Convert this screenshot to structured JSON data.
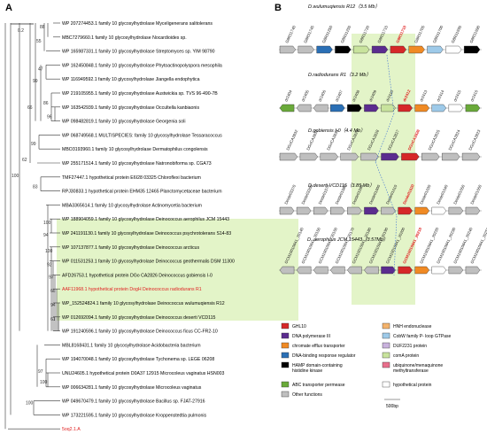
{
  "panel_a": {
    "label": "A",
    "scale_label": "0.2",
    "leaves": [
      {
        "text": "WP 207274453.1 family 10 glycosylhydrolase Myceligenerans salitolerans",
        "red": false
      },
      {
        "text": "MBC7279660.1 family 10 glycosylhydrolase Nocardioides sp.",
        "red": false
      },
      {
        "text": "WP 165987331.1 family 10 glycosylhydrolase Streptomyces sp. YIM 98790",
        "red": false
      },
      {
        "text": "WP 162450848.1 family 10 glycosylhydrolase Phytoactinopolyspora mesophila",
        "red": false
      },
      {
        "text": "WP 116949592.1 family 10 glycosylhydrolase Jiangella endophytica",
        "red": false
      },
      {
        "text": "WP 219105955.1 family 10 glycosylhydrolase Austwickia sp. TVS 96-490-7B",
        "red": false
      },
      {
        "text": "WP 163542939.1 family 10 glycosylhydrolase Occultella kanbiaonis",
        "red": false
      },
      {
        "text": "WP 098482819.1 family 10 glycosylhydrolase Georgenia soli",
        "red": false
      },
      {
        "text": "WP 068749568.1 MULTISPECIES: family 10 glycosylhydrolase Tessaracoccus",
        "red": false
      },
      {
        "text": "MBO3193960.1 family 10 glycosylhydrolase Dermatophilus congolensis",
        "red": false
      },
      {
        "text": "WP 255171514.1 family 10 glycosylhydrolase Natronobiforma sp. CGA73",
        "red": false
      },
      {
        "text": "TMF27447.1 hypothetical protein E6I28 03325 Chloroflexi bacterium",
        "red": false
      },
      {
        "text": "RPJ30833.1 hypothetical protein EHM35 12465 Planctomycetaceae bacterium",
        "red": false
      },
      {
        "text": "MBA3365614.1 family 10 glycosylhydrolase Actinomycetia bacterium",
        "red": false
      },
      {
        "text": "WP 188904059.1 family 10 glycosylhydrolase Deinococcus aerophilus JCM 15443",
        "red": false
      },
      {
        "text": "WP 241191130.1 family 10 glycosylhydrolase Deinococcus psychrotolerans S14-83",
        "red": false
      },
      {
        "text": "WP 107137877.1 family 10 glycosylhydrolase Deinococcus arcticus",
        "red": false
      },
      {
        "text": "WP 011531253.1 family 10 glycosylhydrolase Deinococcus geothermalis DSM 11300",
        "red": false
      },
      {
        "text": "AFD26753.1 hypothetical protein DGo CA2826 Deinococcus gobiensis I-0",
        "red": false
      },
      {
        "text": "AAF11968.1 hypothetical protein DogH Deinococcus radiodurans R1",
        "red": true
      },
      {
        "text": "WP_152524824.1 family 10 glycosylhydrolase Deinococcus wulumuqiensis R12",
        "red": false
      },
      {
        "text": "WP 012692094.1 family 10 glycosylhydrolase Deinococcus deserti VCD115",
        "red": false
      },
      {
        "text": "WP 191240596.1 family 10 glycosylhydrolase Deinococcus ficus CC-FR2-10",
        "red": false
      },
      {
        "text": "MBL8168431.1 family 10 glycosylhydrolase Acidobacteria bacterium",
        "red": false
      },
      {
        "text": "WP 194070048.1 family 10 glycosylhydrolase Tychonema sp. LEGE 06208",
        "red": false
      },
      {
        "text": "UNU24605.1 hypothetical protein D0A37 12915 Microcoleus vaginatus HSN003",
        "red": false
      },
      {
        "text": "WP 006634281.1 family 10 glycosylhydrolase Microcoleus vaginatus",
        "red": false
      },
      {
        "text": "WP 049670479.1 family 10 glycosylhydrolase Bacillus sp. FJAT-27916",
        "red": false
      },
      {
        "text": "WP 173221595.1 family 10 glycosylhydrolase Kroppenstedtia pulmonis",
        "red": false
      },
      {
        "text": "5oq2.1.A",
        "red": true
      }
    ],
    "bootstrap": [
      "88",
      "55",
      "47",
      "99",
      "86",
      "96",
      "66",
      "99",
      "62",
      "83",
      "100",
      "94",
      "100",
      "92",
      "97",
      "66",
      "94",
      "61",
      "100",
      "97",
      "100",
      "100"
    ]
  },
  "panel_b": {
    "label": "B",
    "species": [
      {
        "name": "D.wulumuqiensis R12（3.5 Mb）",
        "genes": [
          "G8R31740",
          "G8R31745",
          "G8R31250",
          "G8R31255",
          "G8R31720",
          "G8R31715",
          "G8R31710",
          "G8R31705",
          "G8R31700",
          "G8R31695",
          "G8R31690"
        ],
        "highlight": "G8R31710"
      },
      {
        "name": "D.radiodurans R1（3.2 Mb）",
        "genes": [
          "dr2404",
          "dr2405",
          "dr2406",
          "dr2407",
          "dr2408",
          "dr2409",
          "dr2410",
          "dr2412",
          "dr2413",
          "dr2414",
          "dr2415",
          "dr2416"
        ],
        "highlight": "dr2412"
      },
      {
        "name": "D.gobiensis I-0（4.4 Mb）",
        "genes": [
          "DGoCA2832",
          "DGoCA2831",
          "DGoCA2830",
          "DGoCA2829",
          "DGoCA2828",
          "DGoCA2827",
          "DGoCA2826",
          "DGoCA2825",
          "DGoCA2824",
          "DGoCA2823"
        ],
        "highlight": "DGoCA2826"
      },
      {
        "name": "D.deserti VCD115（3.85 Mb）",
        "genes": [
          "Deide03370",
          "Deide03360",
          "Deide01570",
          "Deide01580",
          "Deide01590",
          "Deide01600",
          "Deide01610",
          "Deide01620",
          "Deide01630",
          "Deide01640",
          "Deide01650",
          "Deide01660"
        ],
        "highlight": "Deide01620"
      },
      {
        "name": "D. aerophilus JCM 15443（3.57Mb）",
        "genes": [
          "GCM10010841_20140",
          "GCM10010841_20150",
          "GCM10010841_20160",
          "GCM10010841_20170",
          "GCM10010841_20180",
          "GCM10010841_20190",
          "GCM10010841_20200",
          "GCM10010841_20210",
          "GCM10010841_20220",
          "GCM10010841_20230",
          "GCM10010841_20240",
          "GCM10010841_20250"
        ],
        "highlight": "GCM10010841_20210"
      }
    ],
    "legend_left": [
      "GHL10",
      "DNA polymerase III",
      "chromate efflux transporter",
      "DNA-binding response regulator",
      "HAMP domain-containing histidine kinase",
      "ABC transporter permease",
      "Other functions"
    ],
    "legend_right": [
      "HNH endonuclease",
      "CobW family P- loop GTPase",
      "DUF2231 protein",
      "comA protein",
      "ubiquinone/menaquinone methyltransferase",
      "hypothetical protein"
    ],
    "scale_label": "500bp",
    "colors": {
      "ghl10": "#d62728",
      "dnapol": "#5b2c8f",
      "chromate": "#f08a24",
      "regulator": "#2a6fb5",
      "hamp": "#000000",
      "abc": "#6aaa3a",
      "other": "#bfbfbf",
      "hnh": "#f4b36c",
      "cobw": "#9ecae9",
      "duf": "#c9b2dd",
      "coma": "#c8e39d",
      "ubi": "#e86f8c",
      "hypo": "#ffffff",
      "highlight": "#e3f4c8"
    }
  }
}
